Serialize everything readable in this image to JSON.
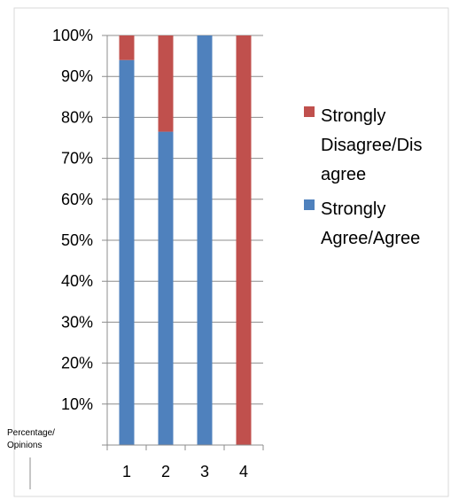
{
  "chart_data": {
    "type": "bar",
    "stacked": true,
    "percent_stacked": true,
    "categories": [
      "1",
      "2",
      "3",
      "4"
    ],
    "series": [
      {
        "name": "Strongly Agree/Agree",
        "color": "#4F81BD",
        "values": [
          94,
          76.5,
          100,
          0
        ]
      },
      {
        "name": "Strongly Disagree/Disagree",
        "color": "#C0504D",
        "values": [
          6,
          23.5,
          0,
          100
        ]
      }
    ],
    "ylim": [
      0,
      100
    ],
    "yticks": [
      "100%",
      "90%",
      "80%",
      "70%",
      "60%",
      "50%",
      "40%",
      "30%",
      "20%",
      "10%"
    ],
    "ylabel": "Percentage/ Opinions",
    "legend": {
      "position": "right",
      "entries": [
        {
          "lines": [
            "Strongly",
            "Disagree/Dis",
            "agree"
          ],
          "color": "#C0504D"
        },
        {
          "lines": [
            "Strongly",
            "Agree/Agree"
          ],
          "color": "#4F81BD"
        }
      ]
    },
    "grid": true
  }
}
